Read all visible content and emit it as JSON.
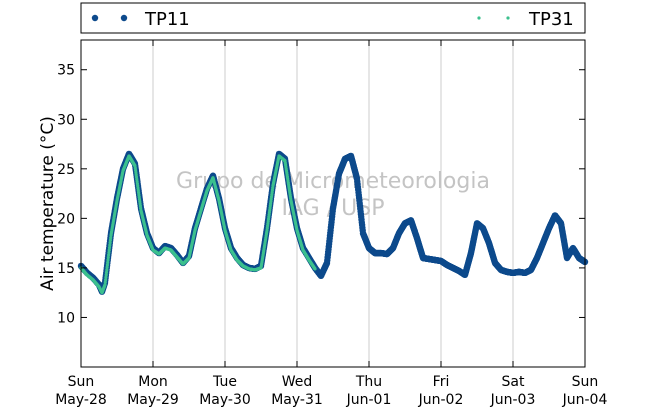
{
  "chart_data": {
    "type": "scatter",
    "title": "",
    "ylabel": "Air temperature (°C)",
    "ylim": [
      5,
      38
    ],
    "yticks": [
      10,
      15,
      20,
      25,
      30,
      35
    ],
    "xlim": [
      "2017-05-28 00:00",
      "2017-06-04 00:00"
    ],
    "xticks": [
      {
        "day": "Sun",
        "date": "May-28"
      },
      {
        "day": "Mon",
        "date": "May-29"
      },
      {
        "day": "Tue",
        "date": "May-30"
      },
      {
        "day": "Wed",
        "date": "May-31"
      },
      {
        "day": "Thu",
        "date": "Jun-01"
      },
      {
        "day": "Fri",
        "date": "Jun-02"
      },
      {
        "day": "Sat",
        "date": "Jun-03"
      },
      {
        "day": "Sun",
        "date": "Jun-04"
      }
    ],
    "grid": "vertical",
    "legend_position": "top",
    "watermark": [
      "Grupo de Micrometeorologia",
      "IAG / USP"
    ],
    "series": [
      {
        "name": "TP11",
        "color": "#0d4a8c",
        "marker": "large-dot",
        "points": [
          [
            "2017-05-28 00:00",
            15.2
          ],
          [
            "2017-05-28 02:00",
            14.5
          ],
          [
            "2017-05-28 04:00",
            14.0
          ],
          [
            "2017-05-28 06:00",
            13.3
          ],
          [
            "2017-05-28 07:00",
            12.6
          ],
          [
            "2017-05-28 08:00",
            13.5
          ],
          [
            "2017-05-28 10:00",
            18.5
          ],
          [
            "2017-05-28 12:00",
            22.0
          ],
          [
            "2017-05-28 14:00",
            25.0
          ],
          [
            "2017-05-28 16:00",
            26.5
          ],
          [
            "2017-05-28 18:00",
            25.5
          ],
          [
            "2017-05-28 20:00",
            21.0
          ],
          [
            "2017-05-28 22:00",
            18.5
          ],
          [
            "2017-05-29 00:00",
            17.0
          ],
          [
            "2017-05-29 02:00",
            16.5
          ],
          [
            "2017-05-29 04:00",
            17.2
          ],
          [
            "2017-05-29 06:00",
            17.0
          ],
          [
            "2017-05-29 08:00",
            16.3
          ],
          [
            "2017-05-29 10:00",
            15.5
          ],
          [
            "2017-05-29 12:00",
            16.2
          ],
          [
            "2017-05-29 14:00",
            19.0
          ],
          [
            "2017-05-29 16:00",
            21.0
          ],
          [
            "2017-05-29 18:00",
            23.0
          ],
          [
            "2017-05-29 20:00",
            24.3
          ],
          [
            "2017-05-29 22:00",
            22.0
          ],
          [
            "2017-05-30 00:00",
            19.0
          ],
          [
            "2017-05-30 02:00",
            17.0
          ],
          [
            "2017-05-30 04:00",
            16.0
          ],
          [
            "2017-05-30 06:00",
            15.3
          ],
          [
            "2017-05-30 08:00",
            15.0
          ],
          [
            "2017-05-30 10:00",
            14.9
          ],
          [
            "2017-05-30 12:00",
            15.2
          ],
          [
            "2017-05-30 14:00",
            19.0
          ],
          [
            "2017-05-30 16:00",
            23.5
          ],
          [
            "2017-05-30 18:00",
            26.5
          ],
          [
            "2017-05-30 20:00",
            26.0
          ],
          [
            "2017-05-30 22:00",
            22.0
          ],
          [
            "2017-05-31 00:00",
            19.0
          ],
          [
            "2017-05-31 02:00",
            17.0
          ],
          [
            "2017-05-31 04:00",
            16.0
          ],
          [
            "2017-05-31 06:00",
            15.0
          ],
          [
            "2017-05-31 08:00",
            14.2
          ],
          [
            "2017-05-31 10:00",
            15.5
          ],
          [
            "2017-05-31 12:00",
            21.0
          ],
          [
            "2017-05-31 14:00",
            24.5
          ],
          [
            "2017-05-31 16:00",
            26.0
          ],
          [
            "2017-05-31 18:00",
            26.3
          ],
          [
            "2017-05-31 20:00",
            24.0
          ],
          [
            "2017-05-31 22:00",
            18.5
          ],
          [
            "2017-06-01 00:00",
            17.0
          ],
          [
            "2017-06-01 02:00",
            16.5
          ],
          [
            "2017-06-01 04:00",
            16.5
          ],
          [
            "2017-06-01 06:00",
            16.4
          ],
          [
            "2017-06-01 08:00",
            17.0
          ],
          [
            "2017-06-01 10:00",
            18.5
          ],
          [
            "2017-06-01 12:00",
            19.5
          ],
          [
            "2017-06-01 14:00",
            19.8
          ],
          [
            "2017-06-01 16:00",
            18.0
          ],
          [
            "2017-06-01 18:00",
            16.0
          ],
          [
            "2017-06-01 20:00",
            15.9
          ],
          [
            "2017-06-01 22:00",
            15.8
          ],
          [
            "2017-06-02 00:00",
            15.7
          ],
          [
            "2017-06-02 02:00",
            15.3
          ],
          [
            "2017-06-02 04:00",
            15.0
          ],
          [
            "2017-06-02 06:00",
            14.7
          ],
          [
            "2017-06-02 08:00",
            14.3
          ],
          [
            "2017-06-02 10:00",
            16.5
          ],
          [
            "2017-06-02 12:00",
            19.5
          ],
          [
            "2017-06-02 14:00",
            19.0
          ],
          [
            "2017-06-02 16:00",
            17.5
          ],
          [
            "2017-06-02 18:00",
            15.5
          ],
          [
            "2017-06-02 20:00",
            14.8
          ],
          [
            "2017-06-02 22:00",
            14.6
          ],
          [
            "2017-06-03 00:00",
            14.5
          ],
          [
            "2017-06-03 02:00",
            14.6
          ],
          [
            "2017-06-03 04:00",
            14.5
          ],
          [
            "2017-06-03 06:00",
            14.8
          ],
          [
            "2017-06-03 08:00",
            16.0
          ],
          [
            "2017-06-03 10:00",
            17.5
          ],
          [
            "2017-06-03 12:00",
            19.0
          ],
          [
            "2017-06-03 14:00",
            20.3
          ],
          [
            "2017-06-03 16:00",
            19.5
          ],
          [
            "2017-06-03 18:00",
            16.0
          ],
          [
            "2017-06-03 20:00",
            17.0
          ],
          [
            "2017-06-03 22:00",
            16.0
          ],
          [
            "2017-06-04 00:00",
            15.6
          ]
        ]
      },
      {
        "name": "TP31",
        "color": "#3cc08e",
        "marker": "small-dot",
        "points": [
          [
            "2017-05-28 00:00",
            15.0
          ],
          [
            "2017-05-28 02:00",
            14.3
          ],
          [
            "2017-05-28 04:00",
            13.8
          ],
          [
            "2017-05-28 06:00",
            13.1
          ],
          [
            "2017-05-28 07:00",
            12.5
          ],
          [
            "2017-05-28 08:00",
            13.3
          ],
          [
            "2017-05-28 10:00",
            18.3
          ],
          [
            "2017-05-28 12:00",
            21.8
          ],
          [
            "2017-05-28 14:00",
            24.8
          ],
          [
            "2017-05-28 16:00",
            26.3
          ],
          [
            "2017-05-28 18:00",
            25.3
          ],
          [
            "2017-05-28 20:00",
            20.8
          ],
          [
            "2017-05-28 22:00",
            18.3
          ],
          [
            "2017-05-29 00:00",
            16.8
          ],
          [
            "2017-05-29 02:00",
            16.4
          ],
          [
            "2017-05-29 04:00",
            17.0
          ],
          [
            "2017-05-29 06:00",
            16.8
          ],
          [
            "2017-05-29 08:00",
            16.1
          ],
          [
            "2017-05-29 10:00",
            15.4
          ],
          [
            "2017-05-29 12:00",
            16.0
          ],
          [
            "2017-05-29 14:00",
            18.8
          ],
          [
            "2017-05-29 16:00",
            20.8
          ],
          [
            "2017-05-29 18:00",
            22.8
          ],
          [
            "2017-05-29 20:00",
            24.1
          ],
          [
            "2017-05-29 22:00",
            21.8
          ],
          [
            "2017-05-30 00:00",
            18.8
          ],
          [
            "2017-05-30 02:00",
            16.8
          ],
          [
            "2017-05-30 04:00",
            15.8
          ],
          [
            "2017-05-30 06:00",
            15.2
          ],
          [
            "2017-05-30 08:00",
            14.9
          ],
          [
            "2017-05-30 10:00",
            14.8
          ],
          [
            "2017-05-30 12:00",
            15.0
          ],
          [
            "2017-05-30 14:00",
            18.8
          ],
          [
            "2017-05-30 16:00",
            23.3
          ],
          [
            "2017-05-30 18:00",
            26.3
          ],
          [
            "2017-05-30 20:00",
            25.8
          ],
          [
            "2017-05-30 22:00",
            21.8
          ],
          [
            "2017-05-31 00:00",
            18.8
          ],
          [
            "2017-05-31 02:00",
            16.8
          ],
          [
            "2017-05-31 04:00",
            15.8
          ],
          [
            "2017-05-31 06:00",
            14.9
          ]
        ]
      }
    ]
  }
}
